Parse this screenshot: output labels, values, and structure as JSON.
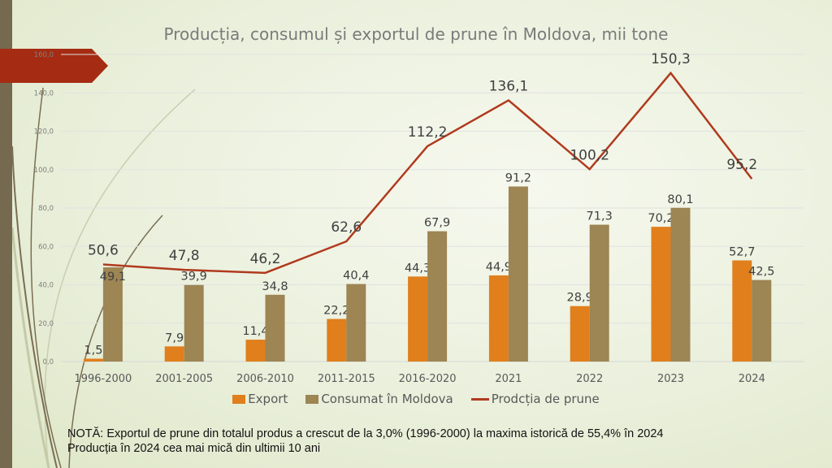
{
  "chart_data": {
    "type": "bar+line",
    "title": "Producția, consumul și exportul de prune în Moldova, mii tone",
    "categories": [
      "1996-2000",
      "2001-2005",
      "2006-2010",
      "2011-2015",
      "2016-2020",
      "2021",
      "2022",
      "2023",
      "2024"
    ],
    "series": [
      {
        "name": "Export",
        "type": "bar",
        "color": "#e07f1c",
        "values": [
          1.5,
          7.9,
          11.4,
          22.2,
          44.3,
          44.9,
          28.9,
          70.2,
          52.7
        ],
        "labels": [
          "1,5",
          "7,9",
          "11,4",
          "22,2",
          "44,3",
          "44,9",
          "28,9",
          "70,2",
          "52,7"
        ]
      },
      {
        "name": "Consumat în Moldova",
        "type": "bar",
        "color": "#9d8554",
        "values": [
          49.1,
          39.9,
          34.8,
          40.4,
          67.9,
          91.2,
          71.3,
          80.1,
          42.5
        ],
        "labels": [
          "49,1",
          "39,9",
          "34,8",
          "40,4",
          "67,9",
          "91,2",
          "71,3",
          "80,1",
          "42,5"
        ]
      },
      {
        "name": "Prodcția de prune",
        "type": "line",
        "color": "#b03a1e",
        "values": [
          50.6,
          47.8,
          46.2,
          62.6,
          112.2,
          136.1,
          100.2,
          150.3,
          95.2
        ],
        "labels": [
          "50,6",
          "47,8",
          "46,2",
          "62,6",
          "112,2",
          "136,1",
          "100,2",
          "150,3",
          "95,2"
        ]
      }
    ],
    "ylim": [
      0,
      160
    ],
    "yticks": [
      "0,0",
      "20,0",
      "40,0",
      "60,0",
      "80,0",
      "100,0",
      "120,0",
      "140,0",
      "160,0"
    ],
    "grid": true,
    "legend": "bottom"
  },
  "note": {
    "line1": "NOTĂ: Exportul de prune din totalul produs a crescut de la 3,0% (1996-2000) la maxima istorică de 55,4% în 2024",
    "line2": "Producția în 2024 cea mai mică din ultimii 10 ani"
  },
  "colors": {
    "banner": "#a52c12",
    "sidebar": "#756a50"
  }
}
